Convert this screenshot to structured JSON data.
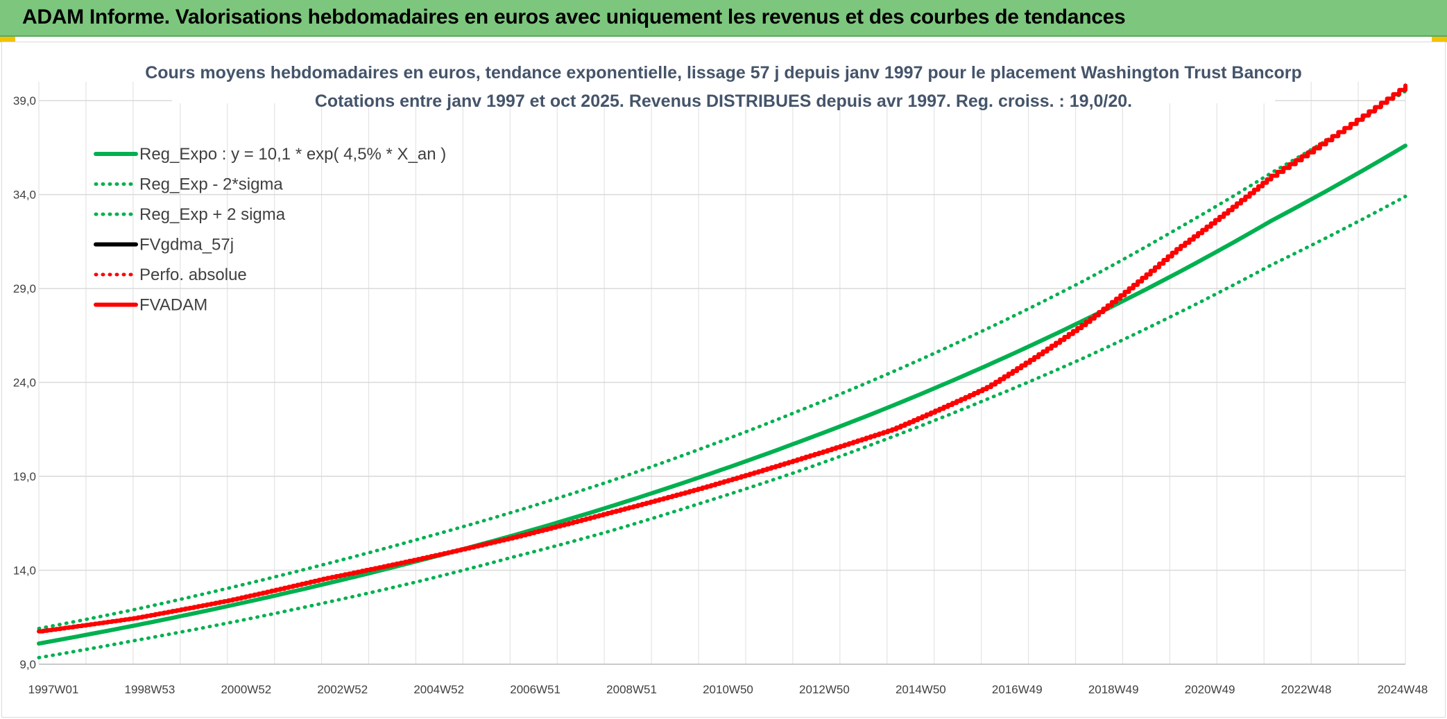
{
  "banner": {
    "title": "ADAM Informe. Valorisations hebdomadaires en euros avec uniquement les revenus et des courbes de tendances"
  },
  "chart_data": {
    "type": "line",
    "title": "Cours moyens hebdomadaires en euros, tendance exponentielle, lissage 57 j depuis janv 1997 pour le placement Washington Trust Bancorp",
    "subtitle": "Cotations entre janv 1997 et oct 2025. Revenus DISTRIBUES depuis avr 1997. Reg. croiss. : 19,0/20.",
    "xlabel": "",
    "ylabel": "",
    "x_ticks": [
      "1997W01",
      "1998W53",
      "2000W52",
      "2002W52",
      "2004W52",
      "2006W51",
      "2008W51",
      "2010W50",
      "2012W50",
      "2014W50",
      "2016W49",
      "2018W49",
      "2020W49",
      "2022W48",
      "2024W48"
    ],
    "x_years_range": [
      1997.0,
      2025.83
    ],
    "y_ticks": [
      "9,0",
      "14,0",
      "19,0",
      "24,0",
      "29,0",
      "34,0",
      "39,0"
    ],
    "ylim": [
      9.0,
      40.0
    ],
    "grid": true,
    "legend_position": "top-left",
    "series": [
      {
        "name": "Reg_Expo : y = 10,1 * exp( 4,5% *  X_an )",
        "color": "#00b050",
        "style": "solid",
        "x": [
          1997.0,
          1999.0,
          2001.0,
          2003.0,
          2005.0,
          2007.0,
          2009.0,
          2011.0,
          2013.0,
          2015.0,
          2017.0,
          2019.0,
          2021.0,
          2023.0,
          2025.83
        ],
        "values": [
          10.1,
          11.05,
          12.1,
          13.25,
          14.5,
          15.85,
          17.35,
          19.0,
          20.8,
          22.75,
          24.9,
          27.25,
          29.8,
          32.6,
          36.6
        ]
      },
      {
        "name": "Reg_Exp - 2*sigma",
        "color": "#00b050",
        "style": "dotted",
        "x": [
          1997.0,
          1999.0,
          2001.0,
          2003.0,
          2005.0,
          2007.0,
          2009.0,
          2011.0,
          2013.0,
          2015.0,
          2017.0,
          2019.0,
          2021.0,
          2023.0,
          2025.83
        ],
        "values": [
          9.35,
          10.25,
          11.2,
          12.25,
          13.4,
          14.7,
          16.05,
          17.6,
          19.25,
          21.1,
          23.1,
          25.25,
          27.65,
          30.25,
          33.9
        ]
      },
      {
        "name": "Reg_Exp + 2 sigma",
        "color": "#00b050",
        "style": "dotted",
        "x": [
          1997.0,
          1999.0,
          2001.0,
          2003.0,
          2005.0,
          2007.0,
          2009.0,
          2011.0,
          2013.0,
          2015.0,
          2017.0,
          2019.0,
          2021.0,
          2023.0,
          2025.83
        ],
        "values": [
          10.9,
          11.9,
          13.05,
          14.3,
          15.65,
          17.1,
          18.7,
          20.5,
          22.45,
          24.55,
          26.85,
          29.35,
          32.15,
          35.15,
          39.5
        ]
      },
      {
        "name": "FVgdma_57j",
        "color": "#000000",
        "style": "solid",
        "x": [],
        "values": []
      },
      {
        "name": "Perfo. absolue",
        "color": "#ff0000",
        "style": "dotted",
        "x": [],
        "values": []
      },
      {
        "name": "FVADAM",
        "color": "#ff0000",
        "style": "solid",
        "x": [
          1997.0,
          1999.0,
          2001.0,
          2003.0,
          2005.0,
          2007.0,
          2009.0,
          2011.0,
          2013.0,
          2015.0,
          2017.0,
          2019.0,
          2021.0,
          2023.0,
          2025.83
        ],
        "values": [
          10.75,
          11.45,
          12.4,
          13.55,
          14.6,
          15.75,
          17.05,
          18.4,
          19.9,
          21.5,
          23.75,
          27.05,
          31.1,
          35.0,
          39.8
        ]
      }
    ]
  }
}
